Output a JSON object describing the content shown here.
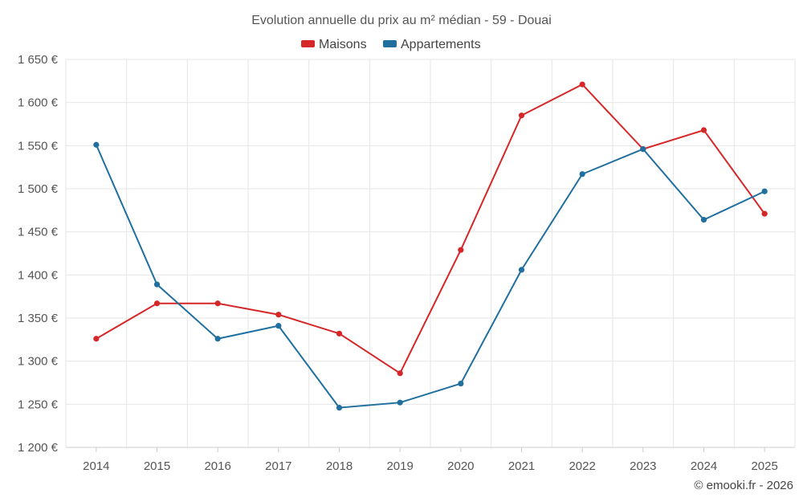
{
  "chart_data": {
    "type": "line",
    "title": "Evolution annuelle du prix au m² médian - 59 - Douai",
    "categories": [
      "2014",
      "2015",
      "2016",
      "2017",
      "2018",
      "2019",
      "2020",
      "2021",
      "2022",
      "2023",
      "2024",
      "2025"
    ],
    "series": [
      {
        "name": "Maisons",
        "color": "#d62728",
        "values": [
          1326,
          1367,
          1367,
          1354,
          1332,
          1286,
          1429,
          1585,
          1621,
          1546,
          1568,
          1471
        ]
      },
      {
        "name": "Appartements",
        "color": "#1f6f9f",
        "values": [
          1551,
          1389,
          1326,
          1341,
          1246,
          1252,
          1274,
          1406,
          1517,
          1546,
          1464,
          1497
        ]
      }
    ],
    "ylim": [
      1200,
      1650
    ],
    "yticks": [
      1200,
      1250,
      1300,
      1350,
      1400,
      1450,
      1500,
      1550,
      1600,
      1650
    ],
    "ytick_labels": [
      "1 200 €",
      "1 250 €",
      "1 300 €",
      "1 350 €",
      "1 400 €",
      "1 450 €",
      "1 500 €",
      "1 550 €",
      "1 600 €",
      "1 650 €"
    ],
    "xlabel": "",
    "ylabel": "",
    "legend": "top-center",
    "grid": true
  },
  "credit": "© emooki.fr - 2026"
}
